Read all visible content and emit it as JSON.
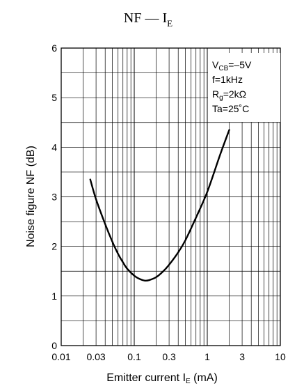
{
  "chart_data": {
    "type": "line",
    "title": {
      "main": "NF — I",
      "sub": "E"
    },
    "xlabel": {
      "prefix": "Emitter current   I",
      "sub": "E",
      "suffix": "  (mA)"
    },
    "ylabel": "Noise figure   NF   (dB)",
    "x_scale": "log",
    "xlim": [
      0.01,
      10
    ],
    "ylim": [
      0,
      6
    ],
    "x_tick_labels": [
      {
        "value": 0.01,
        "label": "0.01"
      },
      {
        "value": 0.03,
        "label": "0.03"
      },
      {
        "value": 0.1,
        "label": "0.1"
      },
      {
        "value": 0.3,
        "label": "0.3"
      },
      {
        "value": 1,
        "label": "1"
      },
      {
        "value": 3,
        "label": "3"
      },
      {
        "value": 10,
        "label": "10"
      }
    ],
    "y_tick_labels": [
      "0",
      "1",
      "2",
      "3",
      "4",
      "5",
      "6"
    ],
    "grid": true,
    "conditions": [
      {
        "text": "V",
        "sub": "CB",
        "suffix": "=–5V"
      },
      {
        "text": "f=1kHz",
        "sub": "",
        "suffix": ""
      },
      {
        "text": "R",
        "sub": "g",
        "suffix": "=2kΩ"
      },
      {
        "text": "Ta=25˚C",
        "sub": "",
        "suffix": ""
      }
    ],
    "series": [
      {
        "x": [
          0.025,
          0.03,
          0.04,
          0.05,
          0.06,
          0.07,
          0.08,
          0.1,
          0.12,
          0.14,
          0.16,
          0.2,
          0.25,
          0.3,
          0.4,
          0.5,
          0.7,
          1.0,
          1.5,
          2.0
        ],
        "y": [
          3.35,
          2.95,
          2.45,
          2.1,
          1.85,
          1.68,
          1.55,
          1.41,
          1.34,
          1.31,
          1.32,
          1.38,
          1.5,
          1.63,
          1.88,
          2.12,
          2.58,
          3.1,
          3.85,
          4.35
        ]
      }
    ]
  }
}
